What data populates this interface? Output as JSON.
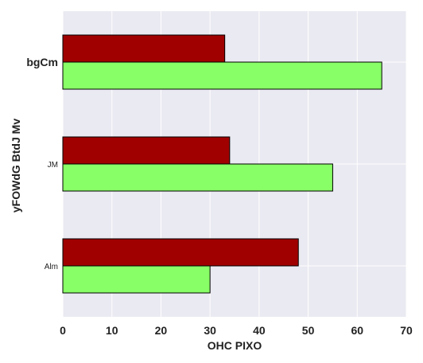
{
  "chart_data": {
    "type": "bar",
    "orientation": "horizontal",
    "categories": [
      "bgCm",
      "JM",
      "Alm"
    ],
    "series": [
      {
        "values": [
          33,
          34,
          48
        ],
        "color": "#a00000"
      },
      {
        "values": [
          65,
          55,
          30
        ],
        "color": "#88ff66"
      }
    ],
    "xlabel": "OHC PIXO",
    "ylabel": "yFOWdG BtdJ Mv",
    "xlim": [
      0,
      70
    ],
    "xticks": [
      "0",
      "10",
      "20",
      "30",
      "40",
      "50",
      "60",
      "70"
    ],
    "grid": true,
    "legend": "none"
  }
}
